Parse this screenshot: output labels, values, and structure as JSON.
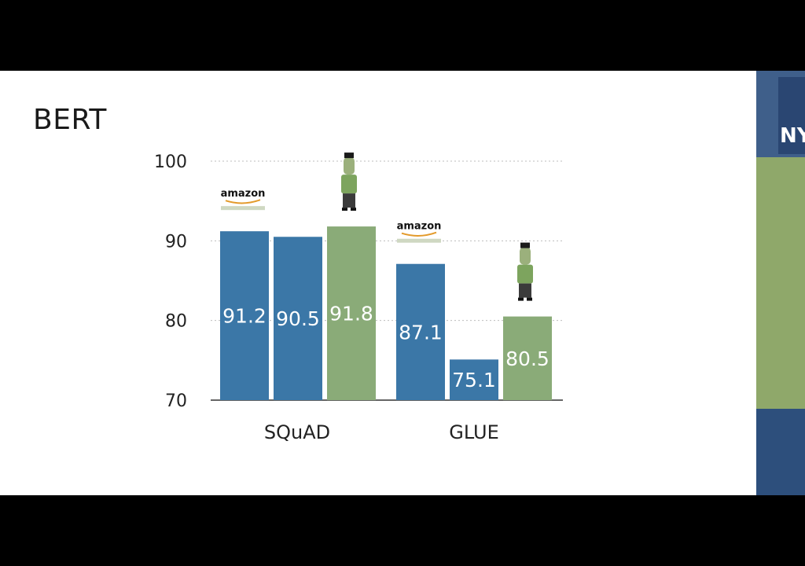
{
  "slide": {
    "title": "BERT",
    "side_logo_text": "NY"
  },
  "badges": {
    "amazon": "amazon"
  },
  "icons": {
    "amazon_logo": "amazon-logo-icon",
    "bert_character": "bert-character-icon"
  },
  "colors": {
    "blue": "#3b77a7",
    "green": "#8aab78",
    "grid": "#bdbdbd"
  },
  "chart_data": {
    "type": "bar",
    "categories": [
      "SQuAD",
      "GLUE"
    ],
    "series": [
      {
        "values": [
          91.2,
          87.1
        ],
        "color": "#3b77a7"
      },
      {
        "values": [
          90.5,
          75.1
        ],
        "color": "#3b77a7"
      },
      {
        "values": [
          91.8,
          80.5
        ],
        "color": "#8aab78"
      }
    ],
    "data_labels": [
      [
        "91.2",
        "90.5",
        "91.8"
      ],
      [
        "87.1",
        "75.1",
        "80.5"
      ]
    ],
    "yticks": [
      70,
      80,
      90,
      100
    ],
    "ylim": [
      70,
      100
    ],
    "grid": true,
    "title": "",
    "xlabel": "",
    "ylabel": ""
  }
}
